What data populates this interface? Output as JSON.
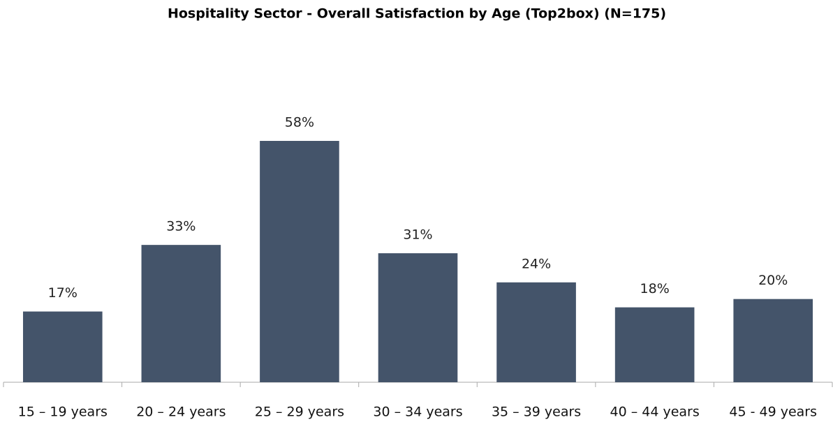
{
  "chart_data": {
    "type": "bar",
    "title": "Hospitality Sector - Overall Satisfaction by Age (Top2box) (N=175)",
    "categories": [
      "15 – 19 years",
      "20 – 24 years",
      "25 – 29 years",
      "30 – 34 years",
      "35 – 39 years",
      "40 – 44 years",
      "45 - 49 years"
    ],
    "values": [
      17,
      33,
      58,
      31,
      24,
      18,
      20
    ],
    "value_labels": [
      "17%",
      "33%",
      "58%",
      "31%",
      "24%",
      "18%",
      "20%"
    ],
    "color": "#44546a"
  }
}
